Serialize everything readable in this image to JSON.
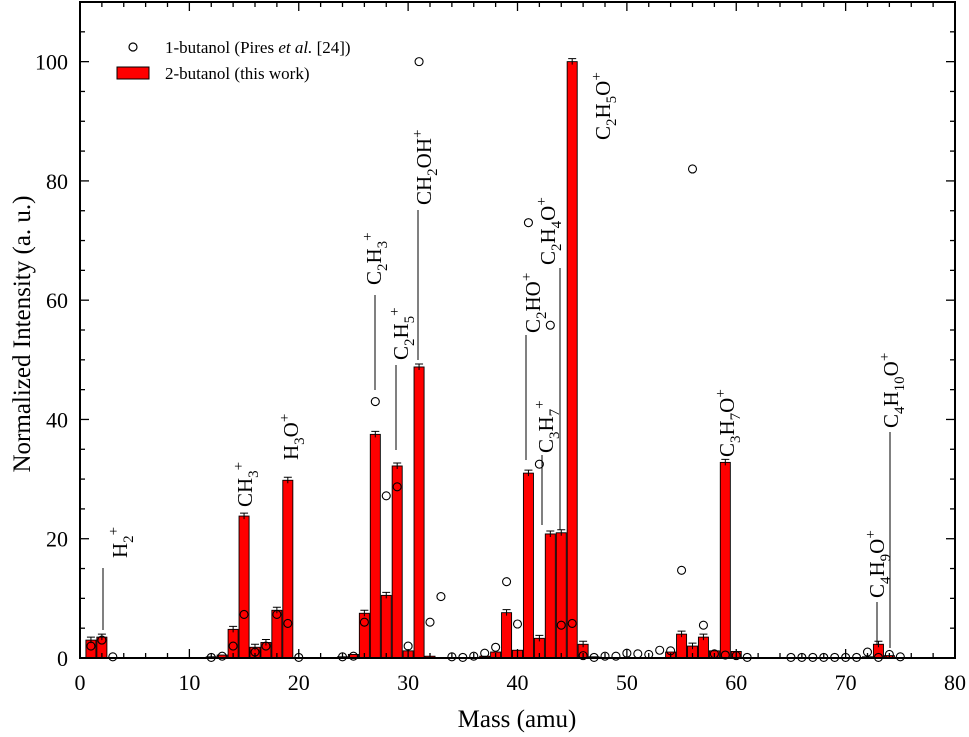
{
  "chart_data": {
    "type": "bar",
    "xlabel": "Mass (amu)",
    "ylabel": "Normalized Intensity (a. u.)",
    "xlim": [
      0,
      80
    ],
    "ylim": [
      0,
      110
    ],
    "xticks": [
      "0",
      "10",
      "20",
      "30",
      "40",
      "50",
      "60",
      "70",
      "80"
    ],
    "yticks": [
      "0",
      "20",
      "40",
      "60",
      "80",
      "100"
    ],
    "grid": false,
    "legend_position": "top-left",
    "legend": [
      {
        "label": "1-butanol (Pires et al. [24])",
        "marker": "open-circle"
      },
      {
        "label": "2-butanol (this work)",
        "marker": "red-bar"
      }
    ],
    "series": [
      {
        "name": "2-butanol (this work)",
        "type": "bar",
        "color": "#ff0000",
        "x": [
          1,
          2,
          12,
          13,
          14,
          15,
          16,
          17,
          18,
          19,
          24,
          25,
          26,
          27,
          28,
          29,
          30,
          31,
          32,
          37,
          38,
          39,
          40,
          41,
          42,
          43,
          44,
          45,
          46,
          47,
          54,
          55,
          56,
          57,
          58,
          59,
          60,
          72,
          73,
          74
        ],
        "values": [
          3.0,
          3.5,
          0.2,
          0.5,
          4.8,
          23.8,
          1.8,
          2.6,
          8.0,
          29.8,
          0.2,
          0.6,
          7.5,
          37.5,
          10.5,
          32.2,
          1.2,
          48.8,
          0.3,
          0.3,
          1.0,
          7.6,
          1.3,
          31.0,
          3.3,
          20.8,
          21.0,
          100.0,
          2.3,
          0.2,
          1.0,
          4.0,
          2.0,
          3.5,
          1.2,
          32.8,
          1.1,
          0.2,
          2.3,
          0.4
        ]
      },
      {
        "name": "1-butanol (Pires et al. [24])",
        "type": "scatter",
        "marker": "open-circle",
        "x": [
          1,
          2,
          3,
          12,
          13,
          14,
          15,
          16,
          17,
          18,
          19,
          20,
          24,
          25,
          26,
          27,
          28,
          29,
          30,
          31,
          32,
          33,
          34,
          35,
          36,
          37,
          38,
          39,
          40,
          41,
          42,
          43,
          44,
          45,
          46,
          47,
          48,
          49,
          50,
          51,
          52,
          53,
          54,
          55,
          56,
          57,
          58,
          59,
          60,
          61,
          65,
          66,
          67,
          68,
          69,
          70,
          71,
          72,
          73,
          74,
          75
        ],
        "values": [
          2.0,
          3.0,
          0.2,
          0.1,
          0.3,
          2.0,
          7.3,
          1.0,
          2.0,
          7.3,
          5.8,
          0.1,
          0.2,
          0.3,
          6.0,
          43.0,
          27.2,
          28.7,
          2.0,
          100.0,
          6.0,
          10.3,
          0.2,
          0.1,
          0.3,
          0.8,
          1.8,
          12.8,
          5.7,
          73.0,
          32.5,
          55.8,
          5.5,
          5.8,
          0.4,
          0.1,
          0.3,
          0.3,
          0.8,
          0.7,
          0.6,
          1.3,
          1.2,
          14.7,
          82.0,
          5.5,
          0.7,
          0.5,
          0.4,
          0.1,
          0.1,
          0.1,
          0.1,
          0.1,
          0.1,
          0.1,
          0.1,
          1.0,
          0.1,
          0.6,
          0.2
        ]
      }
    ],
    "annotations": [
      {
        "id": "h2",
        "parts": [
          {
            "t": "H"
          },
          {
            "t": "2",
            "s": "sub"
          },
          {
            "t": "+",
            "s": "sup"
          }
        ]
      },
      {
        "id": "ch3",
        "parts": [
          {
            "t": "CH"
          },
          {
            "t": "3",
            "s": "sub"
          },
          {
            "t": "+",
            "s": "sup"
          }
        ]
      },
      {
        "id": "h3o",
        "parts": [
          {
            "t": "H"
          },
          {
            "t": "3",
            "s": "sub"
          },
          {
            "t": "O"
          },
          {
            "t": "+",
            "s": "sup"
          }
        ]
      },
      {
        "id": "c2h3",
        "parts": [
          {
            "t": "C"
          },
          {
            "t": "2",
            "s": "sub"
          },
          {
            "t": "H"
          },
          {
            "t": "3",
            "s": "sub"
          },
          {
            "t": "+",
            "s": "sup"
          }
        ]
      },
      {
        "id": "c2h5a",
        "parts": [
          {
            "t": "C"
          },
          {
            "t": "2",
            "s": "sub"
          },
          {
            "t": "H"
          },
          {
            "t": "5",
            "s": "sub"
          },
          {
            "t": "+",
            "s": "sup"
          }
        ]
      },
      {
        "id": "ch2oh",
        "parts": [
          {
            "t": "CH"
          },
          {
            "t": "2",
            "s": "sub"
          },
          {
            "t": "OH"
          },
          {
            "t": "+",
            "s": "sup"
          }
        ]
      },
      {
        "id": "c2ho",
        "parts": [
          {
            "t": "C"
          },
          {
            "t": "2",
            "s": "sub"
          },
          {
            "t": "HO"
          },
          {
            "t": "+",
            "s": "sup"
          }
        ]
      },
      {
        "id": "c3h7a",
        "parts": [
          {
            "t": "C"
          },
          {
            "t": "3",
            "s": "sub"
          },
          {
            "t": "H"
          },
          {
            "t": "7",
            "s": "sub"
          },
          {
            "t": "+",
            "s": "sup"
          }
        ]
      },
      {
        "id": "c2h4o",
        "parts": [
          {
            "t": "C"
          },
          {
            "t": "2",
            "s": "sub"
          },
          {
            "t": "H"
          },
          {
            "t": "4",
            "s": "sub"
          },
          {
            "t": "O"
          },
          {
            "t": "+",
            "s": "sup"
          }
        ]
      },
      {
        "id": "c2h5o",
        "parts": [
          {
            "t": "C"
          },
          {
            "t": "2",
            "s": "sub"
          },
          {
            "t": "H"
          },
          {
            "t": "5",
            "s": "sub"
          },
          {
            "t": "O"
          },
          {
            "t": "+",
            "s": "sup"
          }
        ]
      },
      {
        "id": "c3h7o",
        "parts": [
          {
            "t": "C"
          },
          {
            "t": "3",
            "s": "sub"
          },
          {
            "t": "H"
          },
          {
            "t": "7",
            "s": "sub"
          },
          {
            "t": "O"
          },
          {
            "t": "+",
            "s": "sup"
          }
        ]
      },
      {
        "id": "c4h9o",
        "parts": [
          {
            "t": "C"
          },
          {
            "t": "4",
            "s": "sub"
          },
          {
            "t": "H"
          },
          {
            "t": "9",
            "s": "sub"
          },
          {
            "t": "O"
          },
          {
            "t": "+",
            "s": "sup"
          }
        ]
      },
      {
        "id": "c4h10o",
        "parts": [
          {
            "t": "C"
          },
          {
            "t": "4",
            "s": "sub"
          },
          {
            "t": "H"
          },
          {
            "t": "10",
            "s": "sub"
          },
          {
            "t": "O"
          },
          {
            "t": "+",
            "s": "sup"
          }
        ]
      }
    ]
  }
}
